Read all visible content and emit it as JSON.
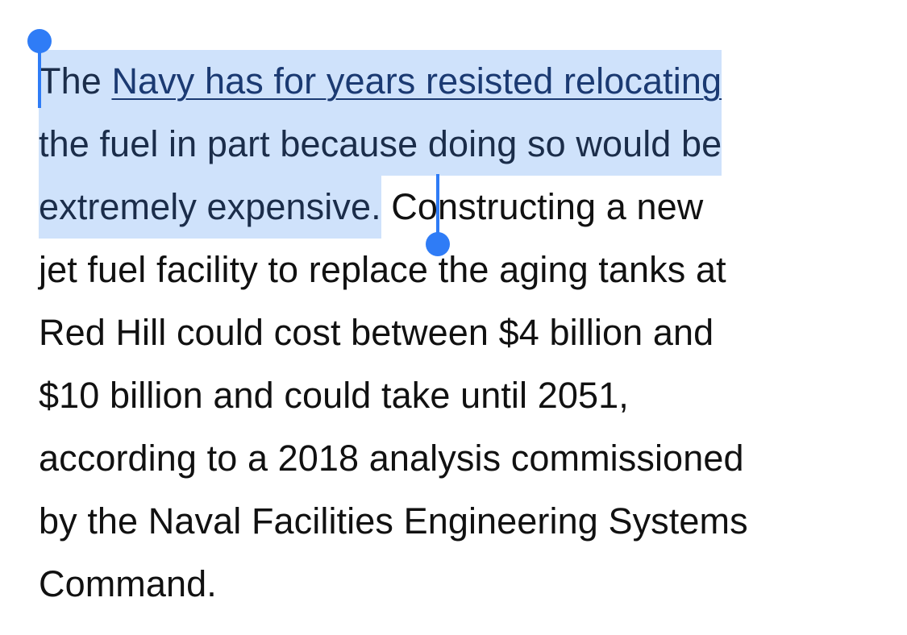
{
  "article": {
    "link_text": "Navy has for years resisted relocating",
    "line1_prefix": "The ",
    "line2": "the fuel in part because doing so would be",
    "line3_selected": "extremely expensive.",
    "line3_rest": " Constructing a new",
    "line4": "jet fuel facility to replace the aging tanks at",
    "line5": "Red Hill could cost between $4 billion and",
    "line6": "$10 billion and could take until 2051,",
    "line7": "according to a 2018 analysis commissioned",
    "line8": "by the Naval Facilities Engineering Systems",
    "line9": "Command."
  },
  "colors": {
    "selection_highlight": "#cfe2fb",
    "selection_handle": "#2f7cf6",
    "link": "#1b3a72",
    "text": "#111111"
  }
}
